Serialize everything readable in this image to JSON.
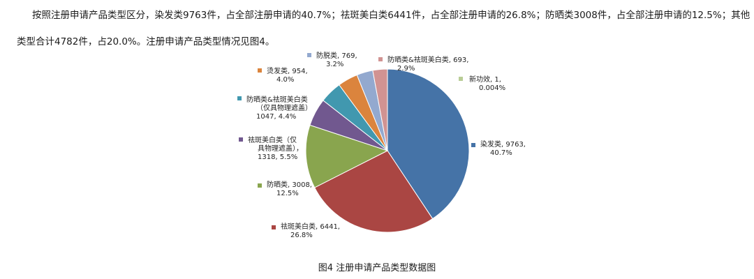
{
  "text": {
    "paragraph_line1": "按照注册申请产品类型区分，染发类9763件，占全部注册申请的40.7%；祛斑美白类6441件，占全部注册申请的26.8%；防晒类3008件，占全部注册申请的12.5%；其他",
    "paragraph_line2": "类型合计4782件，占20.0%。注册申请产品类型情况见图4。",
    "caption": "图4    注册申请产品类型数据图"
  },
  "chart_data": {
    "type": "pie",
    "title": "",
    "start_angle_deg": 0,
    "direction": "clockwise",
    "slices": [
      {
        "name": "染发类",
        "value": 9763,
        "percent": "40.7%",
        "color": "#4573a7",
        "label_lines": [
          "染发类, 9763,",
          "40.7%"
        ]
      },
      {
        "name": "祛斑美白类",
        "value": 6441,
        "percent": "26.8%",
        "color": "#aa4643",
        "label_lines": [
          "祛斑美白类, 6441,",
          "26.8%"
        ]
      },
      {
        "name": "防晒类",
        "value": 3008,
        "percent": "12.5%",
        "color": "#89a54e",
        "label_lines": [
          "防晒类, 3008,",
          "12.5%"
        ]
      },
      {
        "name": "祛斑美白类（仅具物理遮盖）",
        "value": 1318,
        "percent": "5.5%",
        "color": "#71588f",
        "label_lines": [
          "祛斑美白类（仅",
          "具物理遮盖），",
          "1318, 5.5%"
        ]
      },
      {
        "name": "防晒类&祛斑美白类（仅具物理遮盖）",
        "value": 1047,
        "percent": "4.4%",
        "color": "#4198af",
        "label_lines": [
          "防晒类&祛斑美白类",
          "（仅具物理遮盖）",
          "1047, 4.4%"
        ]
      },
      {
        "name": "烫发类",
        "value": 954,
        "percent": "4.0%",
        "color": "#db843d",
        "label_lines": [
          "烫发类, 954,",
          "4.0%"
        ]
      },
      {
        "name": "防脱类",
        "value": 769,
        "percent": "3.2%",
        "color": "#93a9cf",
        "label_lines": [
          "防脱类, 769,",
          "3.2%"
        ]
      },
      {
        "name": "防晒类&祛斑美白类",
        "value": 693,
        "percent": "2.9%",
        "color": "#d19392",
        "label_lines": [
          "防晒类&祛斑美白类, 693,",
          "2.9%"
        ]
      },
      {
        "name": "新功效",
        "value": 1,
        "percent": "0.004%",
        "color": "#b9cd96",
        "label_lines": [
          "新功效, 1,",
          "0.004%"
        ]
      }
    ]
  }
}
